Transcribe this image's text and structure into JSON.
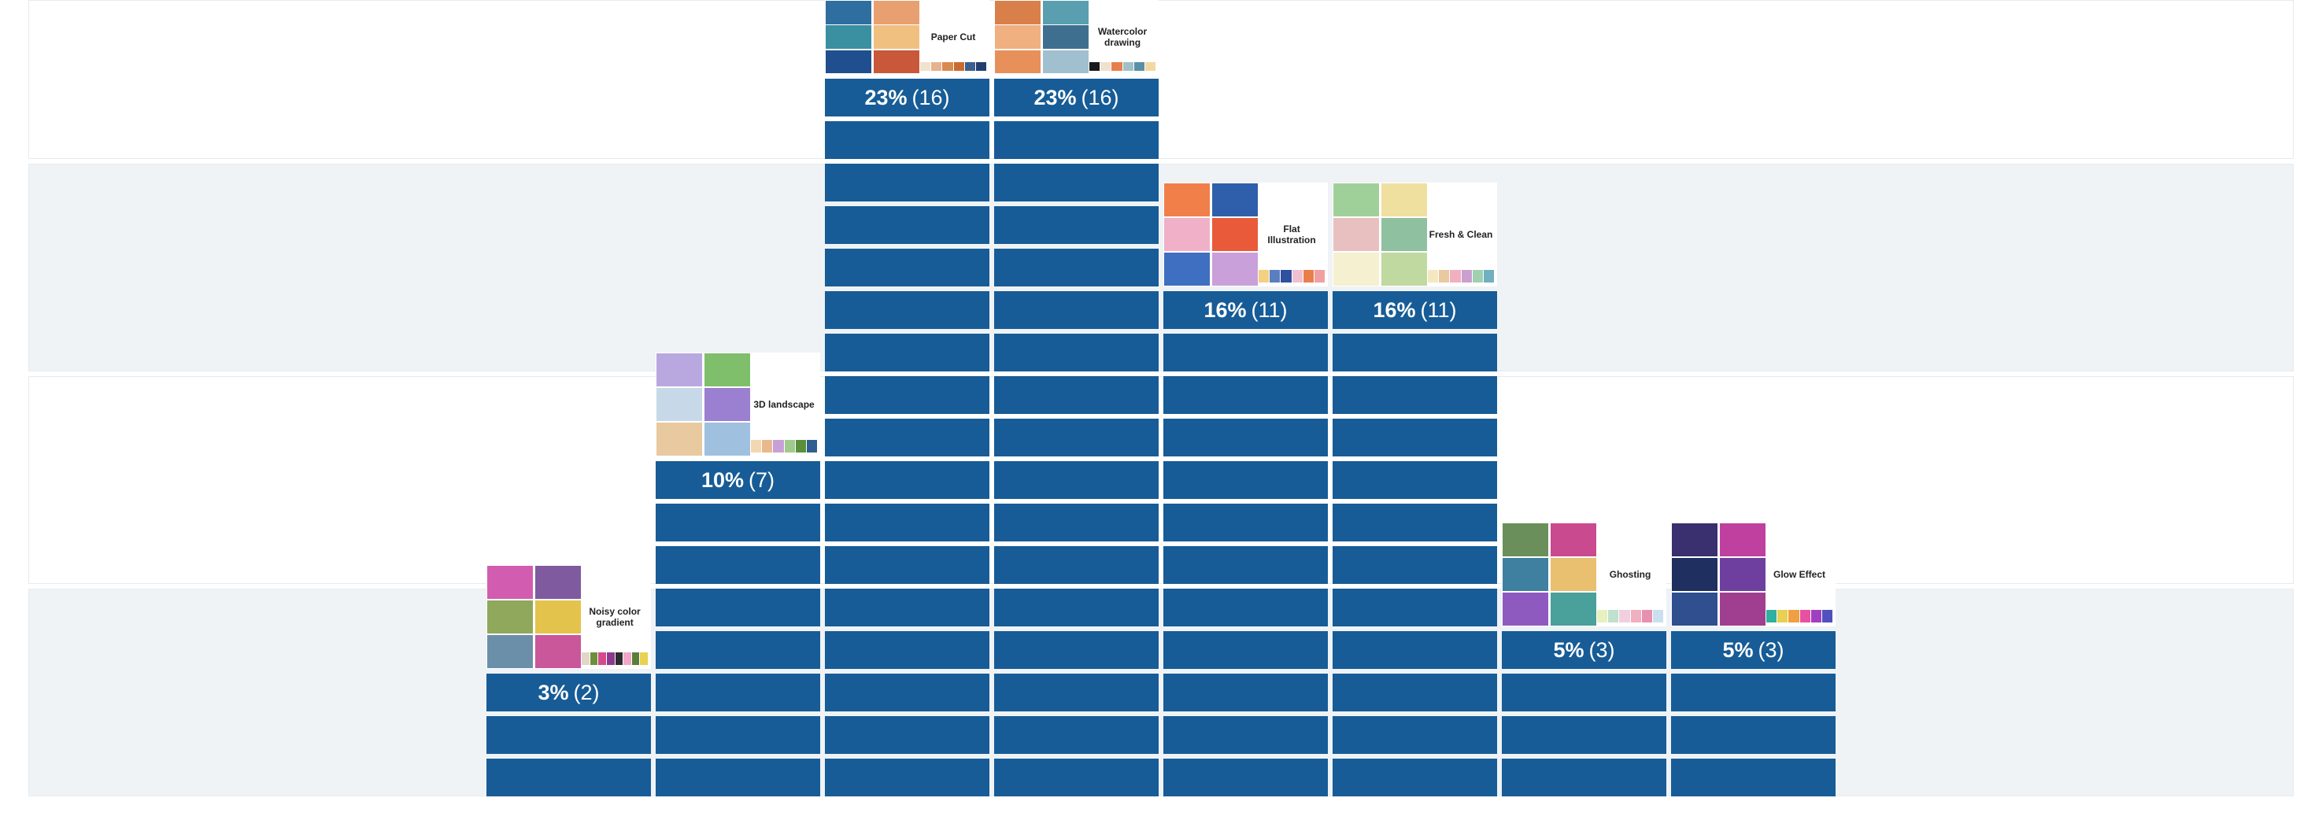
{
  "chart_data": {
    "type": "bar",
    "categories": [
      "Noisy color gradient",
      "3D landscape",
      "Paper Cut",
      "Watercolor drawing",
      "Flat Illustration",
      "Fresh & Clean",
      "Ghosting",
      "Glow Effect"
    ],
    "series": [
      {
        "values": [
          2,
          7,
          16,
          16,
          11,
          11,
          3,
          3
        ],
        "percent_labels": [
          "3%",
          "10%",
          "23%",
          "23%",
          "16%",
          "16%",
          "5%",
          "5%"
        ],
        "count_labels": [
          "(2)",
          "(7)",
          "(16)",
          "(16)",
          "(11)",
          "(11)",
          "(3)",
          "(3)"
        ]
      }
    ],
    "ylim": [
      0,
      19
    ],
    "bar_color": "#175c96",
    "band_colors": [
      "#eff3f6",
      "#ffffff"
    ],
    "grid": true,
    "legend": "none",
    "thumbnails": [
      {
        "category_index": 0,
        "caption": "Noisy color gradient",
        "palette": [
          "#e2d6c7",
          "#6c8f3c",
          "#d24c8a",
          "#8b3a8f",
          "#2d2d2d",
          "#f1a7c7",
          "#5a7d3a",
          "#e8d24f"
        ],
        "tiles": [
          "#d25db0",
          "#7f5a9e",
          "#8fa85c",
          "#e4c34d",
          "#6b8fa8",
          "#c9579a"
        ]
      },
      {
        "category_index": 1,
        "caption": "3D landscape",
        "palette": [
          "#f3d7b0",
          "#e9b98c",
          "#c7a0d8",
          "#a0c98c",
          "#5a8f3c",
          "#2f5f8f"
        ],
        "tiles": [
          "#b9a8e0",
          "#7fbf6b",
          "#c7d9e8",
          "#9b7fd0",
          "#e8c9a0",
          "#a0c0e0"
        ]
      },
      {
        "category_index": 2,
        "caption": "Paper Cut",
        "palette": [
          "#f1e1cf",
          "#e7b28f",
          "#d98a4e",
          "#c96b2f",
          "#3a5f8f",
          "#1f3f6f"
        ],
        "tiles": [
          "#2f6fa0",
          "#e8a070",
          "#3a8fa0",
          "#f0c080",
          "#1f4f8f",
          "#c9573a"
        ]
      },
      {
        "category_index": 3,
        "caption": "Watercolor drawing",
        "palette": [
          "#1a1a1a",
          "#f0e0d0",
          "#e87f4a",
          "#9fc0c9",
          "#5a8fa8",
          "#f1d9a0"
        ],
        "tiles": [
          "#d9804a",
          "#5a9fb0",
          "#f0b080",
          "#3f6f8f",
          "#e8905a",
          "#a0c0d0"
        ]
      },
      {
        "category_index": 4,
        "caption": "Flat Illustration",
        "palette": [
          "#f5d080",
          "#5a7fc0",
          "#2f4f9f",
          "#f0c0d0",
          "#e87f4a",
          "#f0a0a0"
        ],
        "tiles": [
          "#f07f4a",
          "#2f5faa",
          "#f0b0c8",
          "#e85a3a",
          "#3f6fc0",
          "#c9a0d9"
        ]
      },
      {
        "category_index": 5,
        "caption": "Fresh & Clean",
        "palette": [
          "#f5e8c0",
          "#e8c9a0",
          "#f0b0c0",
          "#c9a0d0",
          "#a0d0b0",
          "#70b0c0"
        ],
        "tiles": [
          "#a0d09a",
          "#f0e0a0",
          "#e8c0c0",
          "#8fc0a0",
          "#f5f0d0",
          "#c0d9a0"
        ]
      },
      {
        "category_index": 6,
        "caption": "Ghosting",
        "palette": [
          "#e8f0c0",
          "#c0e0d0",
          "#f0d0e0",
          "#f0b0c0",
          "#e890b0",
          "#c9e0f0"
        ],
        "tiles": [
          "#6a8f5a",
          "#c94a8f",
          "#3f7fa0",
          "#e8c070",
          "#8f5ac0",
          "#4aa09a"
        ]
      },
      {
        "category_index": 7,
        "caption": "Glow Effect",
        "palette": [
          "#2fb0a0",
          "#e8d050",
          "#f0a040",
          "#e850a0",
          "#a040c0",
          "#5050c0"
        ],
        "tiles": [
          "#3a2f6f",
          "#c040a0",
          "#1f2f5f",
          "#6f3fa0",
          "#2f4f8f",
          "#a03f8f"
        ]
      }
    ]
  }
}
